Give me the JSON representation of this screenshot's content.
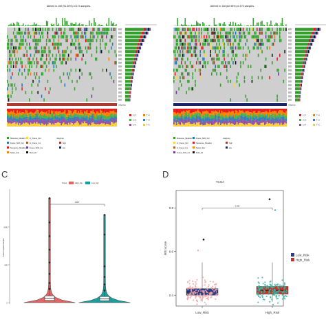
{
  "panel_letters": {
    "c": "C",
    "d": "D"
  },
  "panel_a": {
    "title": "Altered in 159 (91.38%) of 174 samples.",
    "legend_variants": [
      "Missense_Mutation",
      "In_Frame_Del",
      "Frame_Shift_Del",
      "In_Frame_Ins",
      "Nonsense_Mutation",
      "Frame_Shift_Ins",
      "Splice_Site",
      "Multi_Hit"
    ],
    "legend_risk_title": "riskgroup",
    "legend_risk": [
      "high",
      "low"
    ],
    "legend_substitutions": [
      "C>T",
      "T>G",
      "C>G",
      "T>A",
      "C>A",
      "T>C"
    ],
    "risk_group": "high"
  },
  "panel_b": {
    "title": "Altered in 146 (82.95%) of 176 samples.",
    "legend_variants": [
      "Missense_Mutation",
      "Frame_Shift_Del",
      "In_Frame_Del",
      "Nonsense_Mutation",
      "In_Frame_Ins",
      "Splice_Site",
      "Frame_Shift_Ins",
      "Multi_Hit"
    ],
    "legend_risk_title": "riskgroup",
    "legend_risk": [
      "high",
      "low"
    ],
    "legend_substitutions": [
      "C>T",
      "T>G",
      "C>G",
      "T>A",
      "C>A",
      "T>C"
    ],
    "risk_group": "low"
  },
  "colors": {
    "missense": "#33a02c",
    "nonsense": "#e31a1c",
    "frameshift_del": "#1f78b4",
    "frameshift_ins": "#6a3d9a",
    "inframe": "#ffd92f",
    "multi_hit": "#111111",
    "splice": "#ff7f00",
    "background": "#cfcfcf",
    "high_risk": "#e06666",
    "low_risk": "#1b9e9e",
    "high_risk_band": "#b03a2e",
    "low_risk_band": "#1a2466",
    "box_low": "#2b3f8c",
    "box_high": "#c0392b"
  },
  "chart_data": [
    {
      "type": "violin",
      "panel": "C",
      "legend_title": "Group",
      "legend": [
        "High_risk",
        "Low_risk"
      ],
      "ylabel": "Tumor mutation burden",
      "yticks": [
        0,
        500,
        1000
      ],
      "ylim": [
        0,
        1500
      ],
      "p_value": "0.987",
      "groups": [
        {
          "name": "High_risk",
          "median": 55,
          "q1": 30,
          "q3": 90,
          "outliers": [
            180,
            260,
            380,
            530,
            700,
            880,
            1060,
            1380
          ]
        },
        {
          "name": "Low_risk",
          "median": 48,
          "q1": 25,
          "q3": 80,
          "outliers": [
            160,
            240,
            340,
            480,
            900,
            1160
          ]
        }
      ]
    },
    {
      "type": "box",
      "panel": "D",
      "title": "TCGA",
      "ylabel": "MSI score",
      "yticks": [
        0.4,
        0.6,
        0.8
      ],
      "ylim": [
        0.35,
        0.88
      ],
      "categories": [
        "Low_Risk",
        "High_Risk"
      ],
      "category_labels": [
        "Low_Risk",
        "High_Risk"
      ],
      "legend": [
        "Low_Risk",
        "High_Risk"
      ],
      "p_value": "0.008",
      "groups": [
        {
          "name": "Low_Risk",
          "median": 0.415,
          "q1": 0.4,
          "q3": 0.43,
          "max_point": 0.655
        },
        {
          "name": "High_Risk",
          "median": 0.422,
          "q1": 0.405,
          "q3": 0.44,
          "max_point": 0.84
        }
      ]
    }
  ]
}
